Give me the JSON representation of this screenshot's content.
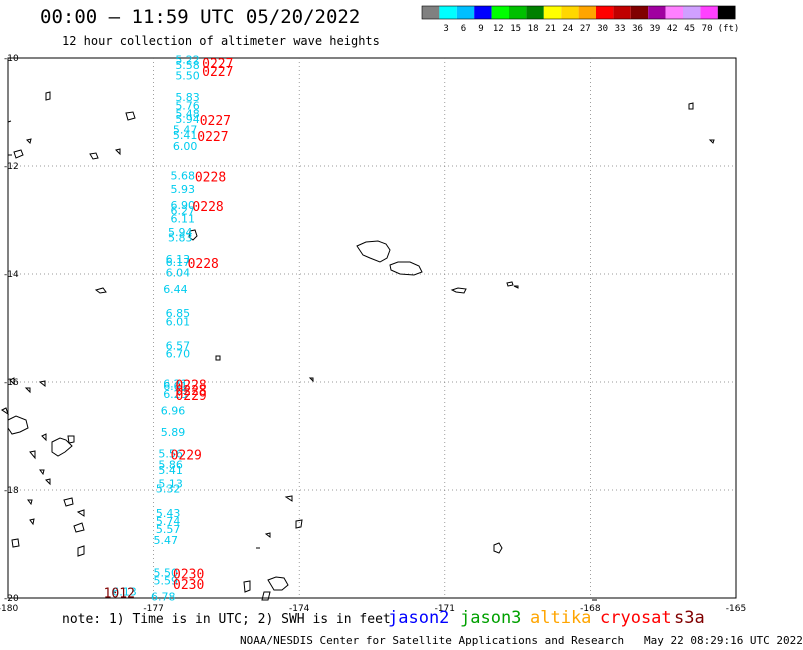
{
  "header": {
    "title": "00:00 – 11:59 UTC 05/20/2022",
    "subtitle": "12 hour collection of altimeter wave heights"
  },
  "colorbar": {
    "colors": [
      "#808080",
      "#00ffff",
      "#00bfff",
      "#0000ff",
      "#00ff00",
      "#00c000",
      "#008000",
      "#ffff00",
      "#ffd700",
      "#ffa500",
      "#ff0000",
      "#c00000",
      "#800000",
      "#a000a0",
      "#ff80ff",
      "#d0a0ff",
      "#ff40ff",
      "#000000"
    ],
    "labels": [
      "3",
      "6",
      "9",
      "12",
      "15",
      "18",
      "21",
      "24",
      "27",
      "30",
      "33",
      "36",
      "39",
      "42",
      "45",
      "70"
    ],
    "unit": "(ft)"
  },
  "axes": {
    "lat_labels": [
      "-10",
      "-12",
      "-14",
      "-16",
      "-18",
      "-20"
    ],
    "lon_labels": [
      "-180",
      "-177",
      "-174",
      "-171",
      "-168",
      "-165"
    ]
  },
  "wave_heights": [
    {
      "v": "5.22",
      "lat": -10.1,
      "lon": -176.3
    },
    {
      "v": "5.58",
      "lat": -10.2,
      "lon": -176.3
    },
    {
      "v": "5.50",
      "lat": -10.4,
      "lon": -176.3
    },
    {
      "v": "5.83",
      "lat": -10.8,
      "lon": -176.3
    },
    {
      "v": "5.76",
      "lat": -10.95,
      "lon": -176.3
    },
    {
      "v": "5.48",
      "lat": -11.1,
      "lon": -176.3
    },
    {
      "v": "5.94",
      "lat": -11.2,
      "lon": -176.3
    },
    {
      "v": "5.47",
      "lat": -11.4,
      "lon": -176.35
    },
    {
      "v": "5.41",
      "lat": -11.5,
      "lon": -176.35
    },
    {
      "v": "6.00",
      "lat": -11.7,
      "lon": -176.35
    },
    {
      "v": "5.68",
      "lat": -12.25,
      "lon": -176.4
    },
    {
      "v": "5.93",
      "lat": -12.5,
      "lon": -176.4
    },
    {
      "v": "6.90",
      "lat": -12.8,
      "lon": -176.4
    },
    {
      "v": "6.27",
      "lat": -12.9,
      "lon": -176.4
    },
    {
      "v": "6.11",
      "lat": -13.05,
      "lon": -176.4
    },
    {
      "v": "5.94",
      "lat": -13.3,
      "lon": -176.45
    },
    {
      "v": "5.83",
      "lat": -13.4,
      "lon": -176.45
    },
    {
      "v": "6.13",
      "lat": -13.8,
      "lon": -176.5
    },
    {
      "v": "6.17",
      "lat": -13.85,
      "lon": -176.5
    },
    {
      "v": "6.04",
      "lat": -14.05,
      "lon": -176.5
    },
    {
      "v": "6.44",
      "lat": -14.35,
      "lon": -176.55
    },
    {
      "v": "6.85",
      "lat": -14.8,
      "lon": -176.5
    },
    {
      "v": "6.01",
      "lat": -14.95,
      "lon": -176.5
    },
    {
      "v": "6.57",
      "lat": -15.4,
      "lon": -176.5
    },
    {
      "v": "6.70",
      "lat": -15.55,
      "lon": -176.5
    },
    {
      "v": "6.21",
      "lat": -16.1,
      "lon": -176.55
    },
    {
      "v": "6.01",
      "lat": -16.15,
      "lon": -176.55
    },
    {
      "v": "6.23",
      "lat": -16.3,
      "lon": -176.55
    },
    {
      "v": "6.96",
      "lat": -16.6,
      "lon": -176.6
    },
    {
      "v": "5.89",
      "lat": -17.0,
      "lon": -176.6
    },
    {
      "v": "5.56",
      "lat": -17.4,
      "lon": -176.65
    },
    {
      "v": "5.86",
      "lat": -17.6,
      "lon": -176.65
    },
    {
      "v": "5.41",
      "lat": -17.7,
      "lon": -176.65
    },
    {
      "v": "5.13",
      "lat": -17.95,
      "lon": -176.65
    },
    {
      "v": "5.32",
      "lat": -18.05,
      "lon": -176.7
    },
    {
      "v": "5.43",
      "lat": -18.5,
      "lon": -176.7
    },
    {
      "v": "5.74",
      "lat": -18.65,
      "lon": -176.7
    },
    {
      "v": "5.57",
      "lat": -18.8,
      "lon": -176.7
    },
    {
      "v": "5.47",
      "lat": -19.0,
      "lon": -176.75
    },
    {
      "v": "5.50",
      "lat": -19.6,
      "lon": -176.75
    },
    {
      "v": "5.59",
      "lat": -19.75,
      "lon": -176.75
    },
    {
      "v": "6.78",
      "lat": -20.05,
      "lon": -176.8
    },
    {
      "v": "6.13",
      "lat": -19.95,
      "lon": -177.6
    }
  ],
  "pass_times": [
    {
      "t": "0227",
      "lat": -10.15,
      "lon": -176.0
    },
    {
      "t": "0227",
      "lat": -10.3,
      "lon": -176.0
    },
    {
      "t": "0227",
      "lat": -11.2,
      "lon": -176.05
    },
    {
      "t": "0227",
      "lat": -11.5,
      "lon": -176.1
    },
    {
      "t": "0228",
      "lat": -12.25,
      "lon": -176.15
    },
    {
      "t": "0228",
      "lat": -12.8,
      "lon": -176.2
    },
    {
      "t": "0228",
      "lat": -13.85,
      "lon": -176.3
    },
    {
      "t": "0228",
      "lat": -16.1,
      "lon": -176.55
    },
    {
      "t": "0228",
      "lat": -16.2,
      "lon": -176.55
    },
    {
      "t": "0229",
      "lat": -16.3,
      "lon": -176.55
    },
    {
      "t": "0229",
      "lat": -17.4,
      "lon": -176.65
    },
    {
      "t": "0230",
      "lat": -19.6,
      "lon": -176.6
    },
    {
      "t": "0230",
      "lat": -19.8,
      "lon": -176.6
    }
  ],
  "extra_label": {
    "t": "1012",
    "lat": -19.95,
    "lon": -177.0,
    "color": "#800000"
  },
  "footer": {
    "note": "note: 1) Time is in UTC; 2) SWH is in feet",
    "satellites": [
      {
        "name": "jason2",
        "color": "#0000ff"
      },
      {
        "name": "jason3",
        "color": "#00a000"
      },
      {
        "name": "altika",
        "color": "#ffa500"
      },
      {
        "name": "cryosat",
        "color": "#ff0000"
      },
      {
        "name": "s3a",
        "color": "#800000"
      }
    ],
    "credit": "NOAA/NESDIS Center for Satellite Applications and Research   May 22 08:29:16 UTC 2022"
  }
}
